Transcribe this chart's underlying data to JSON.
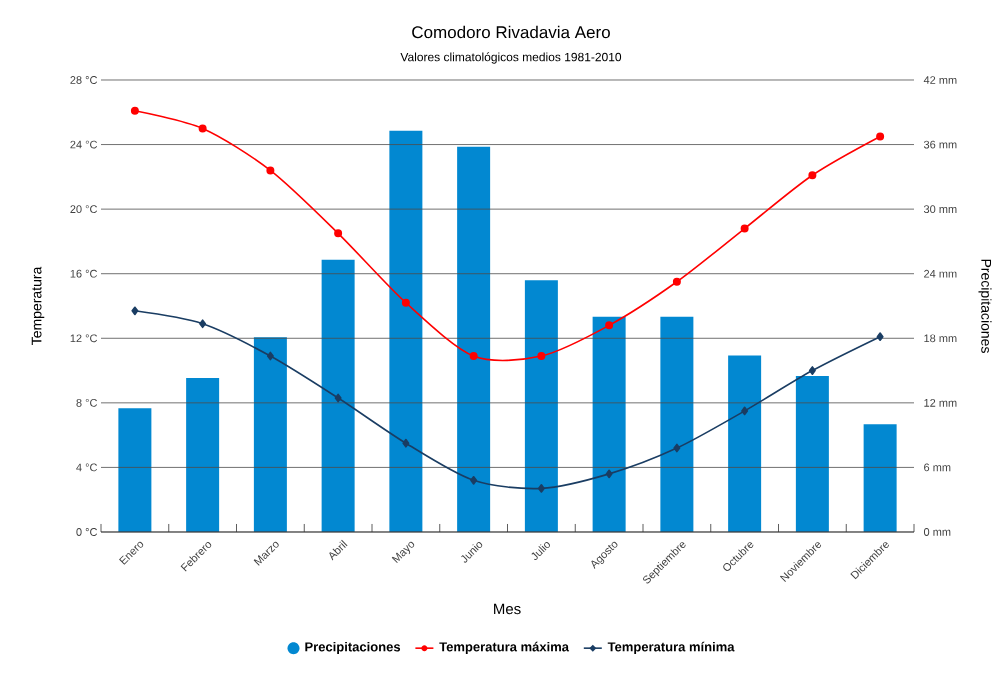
{
  "chart_data": {
    "type": "bar",
    "title": "Comodoro Rivadavia Aero",
    "subtitle": "Valores climatológicos medios 1981-2010",
    "xlabel": "Mes",
    "ylabel": "Temperatura",
    "y2label": "Precipitaciones",
    "categories": [
      "Enero",
      "Febrero",
      "Marzo",
      "Abril",
      "Mayo",
      "Junio",
      "Julio",
      "Agosto",
      "Septiembre",
      "Octubre",
      "Noviembre",
      "Diciembre"
    ],
    "series": [
      {
        "name": "Precipitaciones",
        "axis": "y2",
        "color": "#0288d1",
        "values": [
          11.5,
          14.3,
          18.1,
          25.3,
          37.3,
          35.8,
          23.4,
          20.0,
          20.0,
          16.4,
          14.5,
          10.0
        ]
      },
      {
        "name": "Temperatura máxima",
        "type": "line",
        "color": "#ff0000",
        "marker": "circle",
        "values": [
          26.1,
          25.0,
          22.4,
          18.5,
          14.2,
          10.9,
          10.9,
          12.8,
          15.5,
          18.8,
          22.1,
          24.5
        ]
      },
      {
        "name": "Temperatura mínima",
        "type": "line",
        "color": "#1a3d63",
        "marker": "diamond",
        "values": [
          13.7,
          12.9,
          10.9,
          8.3,
          5.5,
          3.2,
          2.7,
          3.6,
          5.2,
          7.5,
          10.0,
          12.1
        ]
      }
    ],
    "ylim": [
      0,
      28
    ],
    "yticks": [
      {
        "value": 0,
        "label": "0 °C"
      },
      {
        "value": 4,
        "label": "4 °C"
      },
      {
        "value": 8,
        "label": "8 °C"
      },
      {
        "value": 12,
        "label": "12 °C"
      },
      {
        "value": 16,
        "label": "16 °C"
      },
      {
        "value": 20,
        "label": "20 °C"
      },
      {
        "value": 24,
        "label": "24 °C"
      },
      {
        "value": 28,
        "label": "28 °C"
      }
    ],
    "y2lim": [
      0,
      42
    ],
    "y2ticks": [
      {
        "value": 0,
        "label": "0 mm"
      },
      {
        "value": 6,
        "label": "6 mm"
      },
      {
        "value": 12,
        "label": "12 mm"
      },
      {
        "value": 18,
        "label": "18 mm"
      },
      {
        "value": 24,
        "label": "24 mm"
      },
      {
        "value": 30,
        "label": "30 mm"
      },
      {
        "value": 36,
        "label": "36 mm"
      },
      {
        "value": 42,
        "label": "42 mm"
      }
    ],
    "grid": "y",
    "legend": "bottom"
  }
}
